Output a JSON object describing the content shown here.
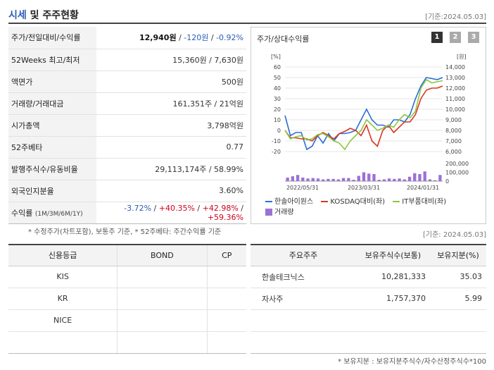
{
  "header": {
    "title_part1": "시세",
    "title_part2": " 및 주주현황",
    "ref_date": "[기준:2024.05.03]"
  },
  "summary": {
    "price_label": "주가/전일대비/수익률",
    "price": "12,940원",
    "change": "-120원",
    "change_rate": "-0.92%",
    "wk52_label": "52Weeks 최고/최저",
    "wk52_value": "15,360원 / 7,630원",
    "par_label": "액면가",
    "par_value": "500원",
    "volume_label": "거래량/거래대금",
    "volume_value": "161,351주 / 21억원",
    "mcap_label": "시가총액",
    "mcap_value": "3,798억원",
    "beta_label": "52주베타",
    "beta_value": "0.77",
    "shares_label": "발행주식수/유동비율",
    "shares_value": "29,113,174주 / 58.99%",
    "foreign_label": "외국인지분율",
    "foreign_value": "3.60%",
    "returns_label": "수익률",
    "returns_period": "(1M/3M/6M/1Y)",
    "r1": "-3.72%",
    "r2": "+40.35%",
    "r3": "+42.98%",
    "r4": "+59.36%"
  },
  "note1": "* 수정주가(차트포함), 보통주 기준, * 52주베타: 주간수익률 기준",
  "chart_panel": {
    "title": "주가/상대수익률",
    "pages": [
      "1",
      "2",
      "3"
    ]
  },
  "chart_data": {
    "type": "line",
    "left_unit": "[%]",
    "right_unit": "[원]",
    "left_ticks": [
      "60",
      "50",
      "40",
      "30",
      "20",
      "10",
      "0",
      "-10",
      "-20"
    ],
    "right_ticks": [
      "14,000",
      "13,000",
      "12,000",
      "11,000",
      "10,000",
      "9,000",
      "8,000",
      "7,000",
      "6,000"
    ],
    "volume_ticks": [
      "200,000",
      "100,000",
      "0"
    ],
    "x_ticks": [
      "2022/05/31",
      "2023/03/31",
      "2024/01/31"
    ],
    "ylim_left": [
      -20,
      60
    ],
    "series": [
      {
        "name": "한솔아이원스",
        "color": "#2a6fd6",
        "values": [
          14,
          -5,
          -2,
          -2,
          -18,
          -15,
          -5,
          -12,
          -3,
          -10,
          -3,
          -3,
          -2,
          0,
          10,
          20,
          10,
          5,
          5,
          3,
          10,
          10,
          8,
          15,
          30,
          42,
          50,
          49,
          48,
          50
        ]
      },
      {
        "name": "KOSDAQ대비(좌)",
        "color": "#d9381e",
        "values": [
          0,
          -7,
          -7,
          -8,
          -8,
          -10,
          -5,
          -2,
          -5,
          -8,
          -3,
          -1,
          2,
          0,
          -5,
          5,
          -10,
          -15,
          0,
          5,
          -2,
          3,
          8,
          8,
          15,
          30,
          38,
          40,
          40,
          42
        ]
      },
      {
        "name": "IT부품대비(좌)",
        "color": "#8cc63f",
        "values": [
          0,
          -8,
          -6,
          -5,
          -9,
          -8,
          -4,
          -3,
          -6,
          -10,
          -12,
          -18,
          -10,
          -5,
          0,
          10,
          5,
          0,
          2,
          5,
          3,
          10,
          15,
          12,
          18,
          40,
          48,
          45,
          46,
          47
        ]
      }
    ],
    "volume_name": "거래량",
    "volume_color": "#9b72d4",
    "volume": [
      40,
      55,
      70,
      40,
      30,
      35,
      30,
      20,
      25,
      25,
      20,
      35,
      35,
      15,
      60,
      100,
      85,
      80,
      15,
      20,
      30,
      25,
      30,
      20,
      50,
      90,
      80,
      110,
      20,
      10,
      70
    ]
  },
  "ref2": "[기준: 2024.05.03]",
  "credit_table": {
    "headers": [
      "신용등급",
      "BOND",
      "CP"
    ],
    "rows": [
      [
        "KIS",
        "",
        ""
      ],
      [
        "KR",
        "",
        ""
      ],
      [
        "NICE",
        "",
        ""
      ],
      [
        "",
        "",
        ""
      ]
    ]
  },
  "holders_table": {
    "headers": [
      "주요주주",
      "보유주식수(보통)",
      "보유지분(%)"
    ],
    "rows": [
      [
        "한솔테크닉스",
        "10,281,333",
        "35.03"
      ],
      [
        "자사주",
        "1,757,370",
        "5.99"
      ],
      [
        "",
        "",
        ""
      ],
      [
        "",
        "",
        ""
      ]
    ]
  },
  "note2": "* 보유지분 : 보유지분주식수/자수산정주식수*100"
}
